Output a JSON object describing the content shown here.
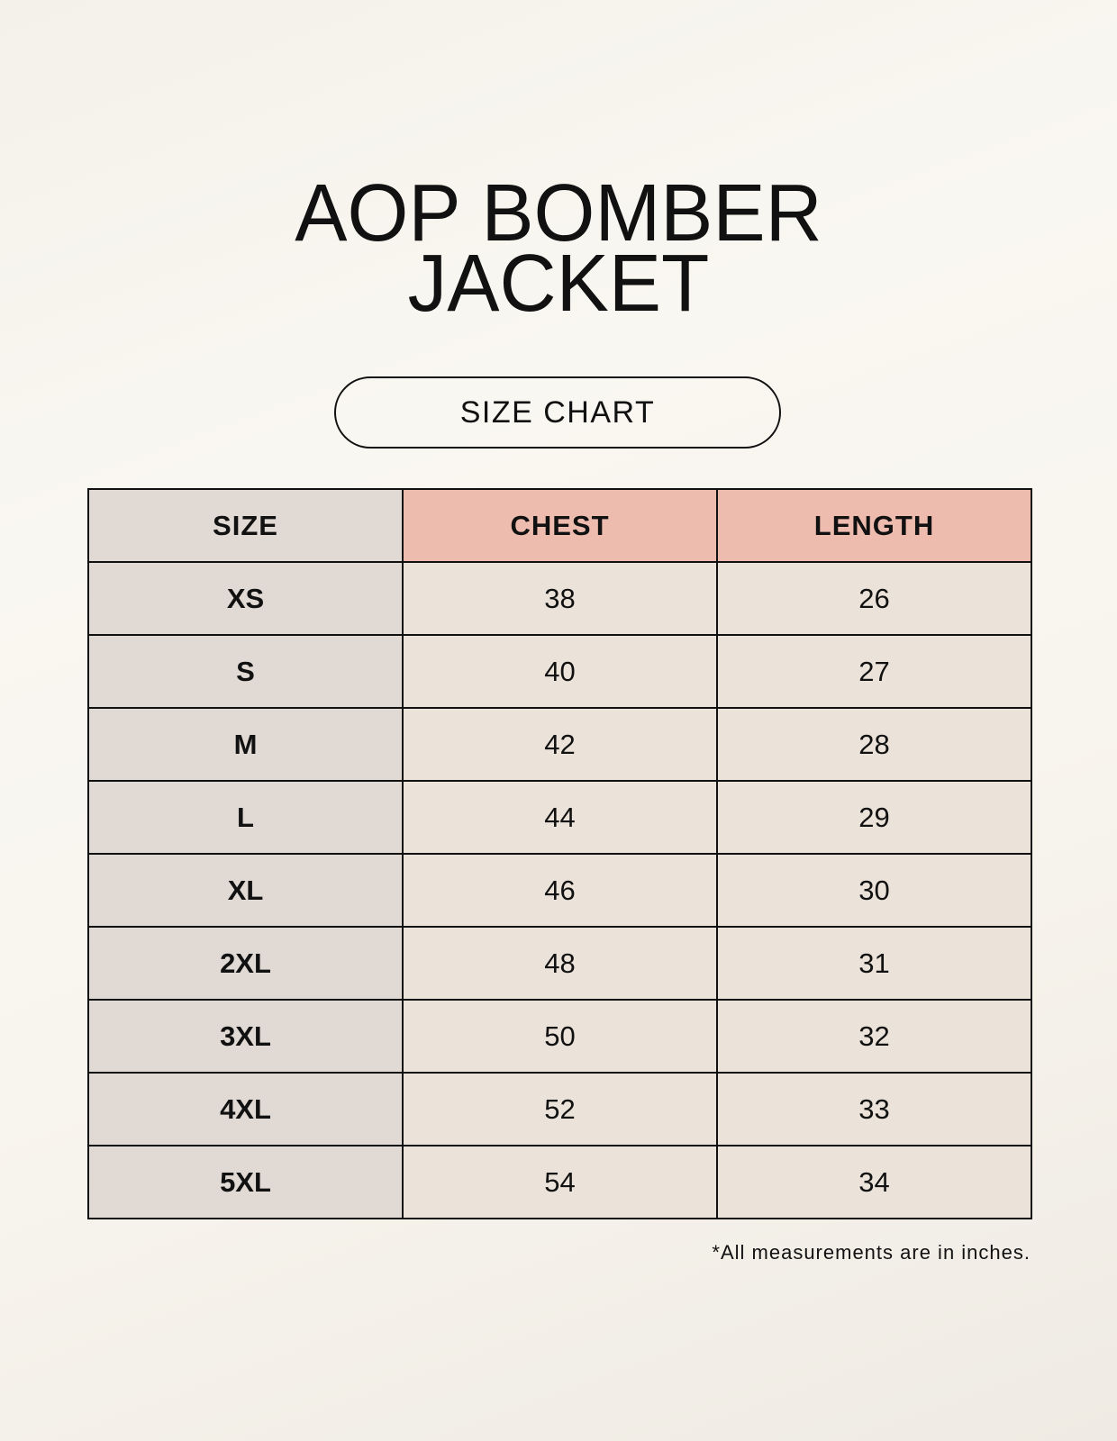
{
  "title_lines": [
    "AOP BOMBER",
    "JACKET"
  ],
  "subtitle": "SIZE CHART",
  "table": {
    "headers": [
      "SIZE",
      "CHEST",
      "LENGTH"
    ],
    "rows": [
      [
        "XS",
        "38",
        "26"
      ],
      [
        "S",
        "40",
        "27"
      ],
      [
        "M",
        "42",
        "28"
      ],
      [
        "L",
        "44",
        "29"
      ],
      [
        "XL",
        "46",
        "30"
      ],
      [
        "2XL",
        "48",
        "31"
      ],
      [
        "3XL",
        "50",
        "32"
      ],
      [
        "4XL",
        "52",
        "33"
      ],
      [
        "5XL",
        "54",
        "34"
      ]
    ]
  },
  "footnote": "*All measurements are in inches.",
  "colors": {
    "size_column": "#e0d9d4",
    "header_accent": "#eebcaf",
    "cell": "#ebe3d9"
  }
}
